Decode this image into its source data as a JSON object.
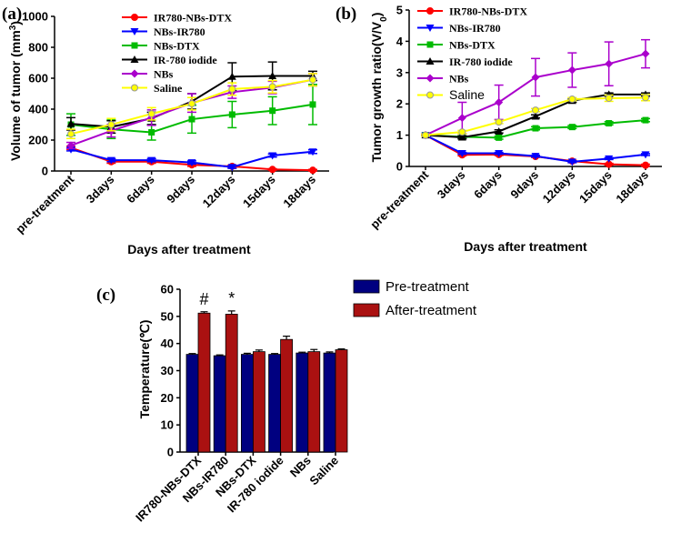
{
  "panels": [
    {
      "panel_label": "(a)",
      "chart_data": {
        "type": "line",
        "title": "",
        "xlabel": "Days after treatment",
        "ylabel": "Volume of tumor (mm3)",
        "ylabel_main": "Volume of tumor (mm",
        "ylabel_sup": "3",
        "ylabel_end": ")",
        "categories": [
          "pre-treatment",
          "3days",
          "6days",
          "9days",
          "12days",
          "15days",
          "18days"
        ],
        "ylim": [
          0,
          1000
        ],
        "yticks": [
          "0",
          "200",
          "400",
          "600",
          "800",
          "1000"
        ],
        "yticks_num": [
          0,
          200,
          400,
          600,
          800,
          1000
        ],
        "legend_placement": "top-left",
        "series": [
          {
            "name": "IR780-NBs-DTX",
            "color": "#ff0000",
            "marker": "circle",
            "legend_font": "serif",
            "values": [
              150,
              60,
              60,
              40,
              30,
              10,
              5
            ],
            "errors": [
              10,
              10,
              10,
              10,
              8,
              5,
              5
            ]
          },
          {
            "name": "NBs-IR780",
            "color": "#0000ff",
            "marker": "triangle-down",
            "legend_font": "serif",
            "values": [
              140,
              70,
              70,
              55,
              25,
              100,
              125
            ],
            "errors": [
              10,
              10,
              10,
              10,
              8,
              10,
              12
            ]
          },
          {
            "name": "NBs-DTX",
            "color": "#00bb00",
            "marker": "square",
            "legend_font": "serif",
            "values": [
              300,
              270,
              250,
              335,
              365,
              390,
              430
            ],
            "errors": [
              70,
              60,
              50,
              90,
              85,
              90,
              130
            ]
          },
          {
            "name": "IR-780 iodide",
            "color": "#000000",
            "marker": "triangle-up",
            "legend_font": "serif",
            "values": [
              305,
              285,
              340,
              450,
              610,
              615,
              615
            ],
            "errors": [
              40,
              40,
              40,
              50,
              90,
              90,
              30
            ]
          },
          {
            "name": "NBs",
            "color": "#aa00cc",
            "marker": "diamond",
            "legend_font": "serif",
            "values": [
              165,
              260,
              345,
              440,
              510,
              540,
              590
            ],
            "errors": [
              20,
              40,
              50,
              60,
              40,
              40,
              40
            ]
          },
          {
            "name": "Saline",
            "color": "#ffff00",
            "marker": "circle-open",
            "legend_font": "serif",
            "values": [
              240,
              300,
              370,
              435,
              530,
              545,
              590
            ],
            "errors": [
              30,
              40,
              40,
              40,
              40,
              40,
              40
            ]
          }
        ]
      }
    },
    {
      "panel_label": "(b)",
      "chart_data": {
        "type": "line",
        "title": "",
        "xlabel": "Days after treatment",
        "ylabel": "Tumor growth ratio(V/V0)",
        "ylabel_main": "Tumor growth ratio(V/V",
        "ylabel_sub": "0",
        "ylabel_end": ")",
        "categories": [
          "pre-treatment",
          "3days",
          "6days",
          "9days",
          "12days",
          "15days",
          "18days"
        ],
        "ylim": [
          0,
          5
        ],
        "yticks": [
          "0",
          "1",
          "2",
          "3",
          "4",
          "5"
        ],
        "yticks_num": [
          0,
          1,
          2,
          3,
          4,
          5
        ],
        "legend_placement": "top-left",
        "series": [
          {
            "name": "IR780-NBs-DTX",
            "color": "#ff0000",
            "marker": "circle",
            "legend_font": "serif",
            "values": [
              1.0,
              0.37,
              0.38,
              0.32,
              0.17,
              0.07,
              0.04
            ],
            "errors": [
              0.03,
              0.03,
              0.03,
              0.03,
              0.03,
              0.03,
              0.03
            ]
          },
          {
            "name": "NBs-IR780",
            "color": "#0000ff",
            "marker": "triangle-down",
            "legend_font": "serif",
            "values": [
              1.0,
              0.42,
              0.42,
              0.33,
              0.15,
              0.25,
              0.38
            ],
            "errors": [
              0.03,
              0.03,
              0.03,
              0.03,
              0.03,
              0.03,
              0.03
            ]
          },
          {
            "name": "NBs-DTX",
            "color": "#00bb00",
            "marker": "square",
            "legend_font": "serif",
            "values": [
              1.0,
              0.95,
              0.92,
              1.22,
              1.26,
              1.38,
              1.48
            ],
            "errors": [
              0.03,
              0.03,
              0.05,
              0.05,
              0.05,
              0.05,
              0.05
            ]
          },
          {
            "name": "IR-780 iodide",
            "color": "#000000",
            "marker": "triangle-up",
            "legend_font": "serif",
            "values": [
              1.0,
              0.93,
              1.12,
              1.6,
              2.1,
              2.3,
              2.3
            ],
            "errors": [
              0.03,
              0.05,
              0.05,
              0.05,
              0.05,
              0.05,
              0.05
            ]
          },
          {
            "name": "NBs",
            "color": "#aa00cc",
            "marker": "diamond",
            "legend_font": "serif",
            "values": [
              1.0,
              1.55,
              2.05,
              2.85,
              3.08,
              3.28,
              3.6
            ],
            "errors": [
              0.03,
              0.5,
              0.55,
              0.6,
              0.55,
              0.7,
              0.45
            ]
          },
          {
            "name": "Saline",
            "color": "#ffff00",
            "marker": "circle-open",
            "legend_font": "sans",
            "values": [
              1.0,
              1.1,
              1.42,
              1.8,
              2.15,
              2.18,
              2.2
            ],
            "errors": [
              0.03,
              0.05,
              0.05,
              0.05,
              0.05,
              0.1,
              0.1
            ]
          }
        ]
      }
    },
    {
      "panel_label": "(c)",
      "chart_data": {
        "type": "bar",
        "title": "",
        "xlabel": "",
        "ylabel": "Temperature(℃)",
        "categories": [
          "IR780-NBs-DTX",
          "NBs-IR780",
          "NBs-DTX",
          "IR-780 iodide",
          "NBs",
          "Saline"
        ],
        "ylim": [
          0,
          60
        ],
        "yticks": [
          "0",
          "10",
          "20",
          "30",
          "40",
          "50",
          "60"
        ],
        "yticks_num": [
          0,
          10,
          20,
          30,
          40,
          50,
          60
        ],
        "legend_placement": "top-right",
        "series": [
          {
            "name": "Pre-treatment",
            "color": "#000080",
            "values": [
              36.0,
              35.5,
              36.0,
              36.0,
              36.5,
              36.5
            ],
            "errors": [
              0.3,
              0.3,
              0.4,
              0.3,
              0.3,
              0.4
            ]
          },
          {
            "name": "After-treatment",
            "color": "#aa1111",
            "values": [
              51.2,
              50.8,
              37.0,
              41.5,
              37.0,
              37.7
            ],
            "errors": [
              0.5,
              1.2,
              0.6,
              1.2,
              0.8,
              0.3
            ]
          }
        ],
        "annotations": [
          {
            "category": "IR780-NBs-DTX",
            "text": "#"
          },
          {
            "category": "NBs-IR780",
            "text": "*"
          }
        ]
      }
    }
  ]
}
